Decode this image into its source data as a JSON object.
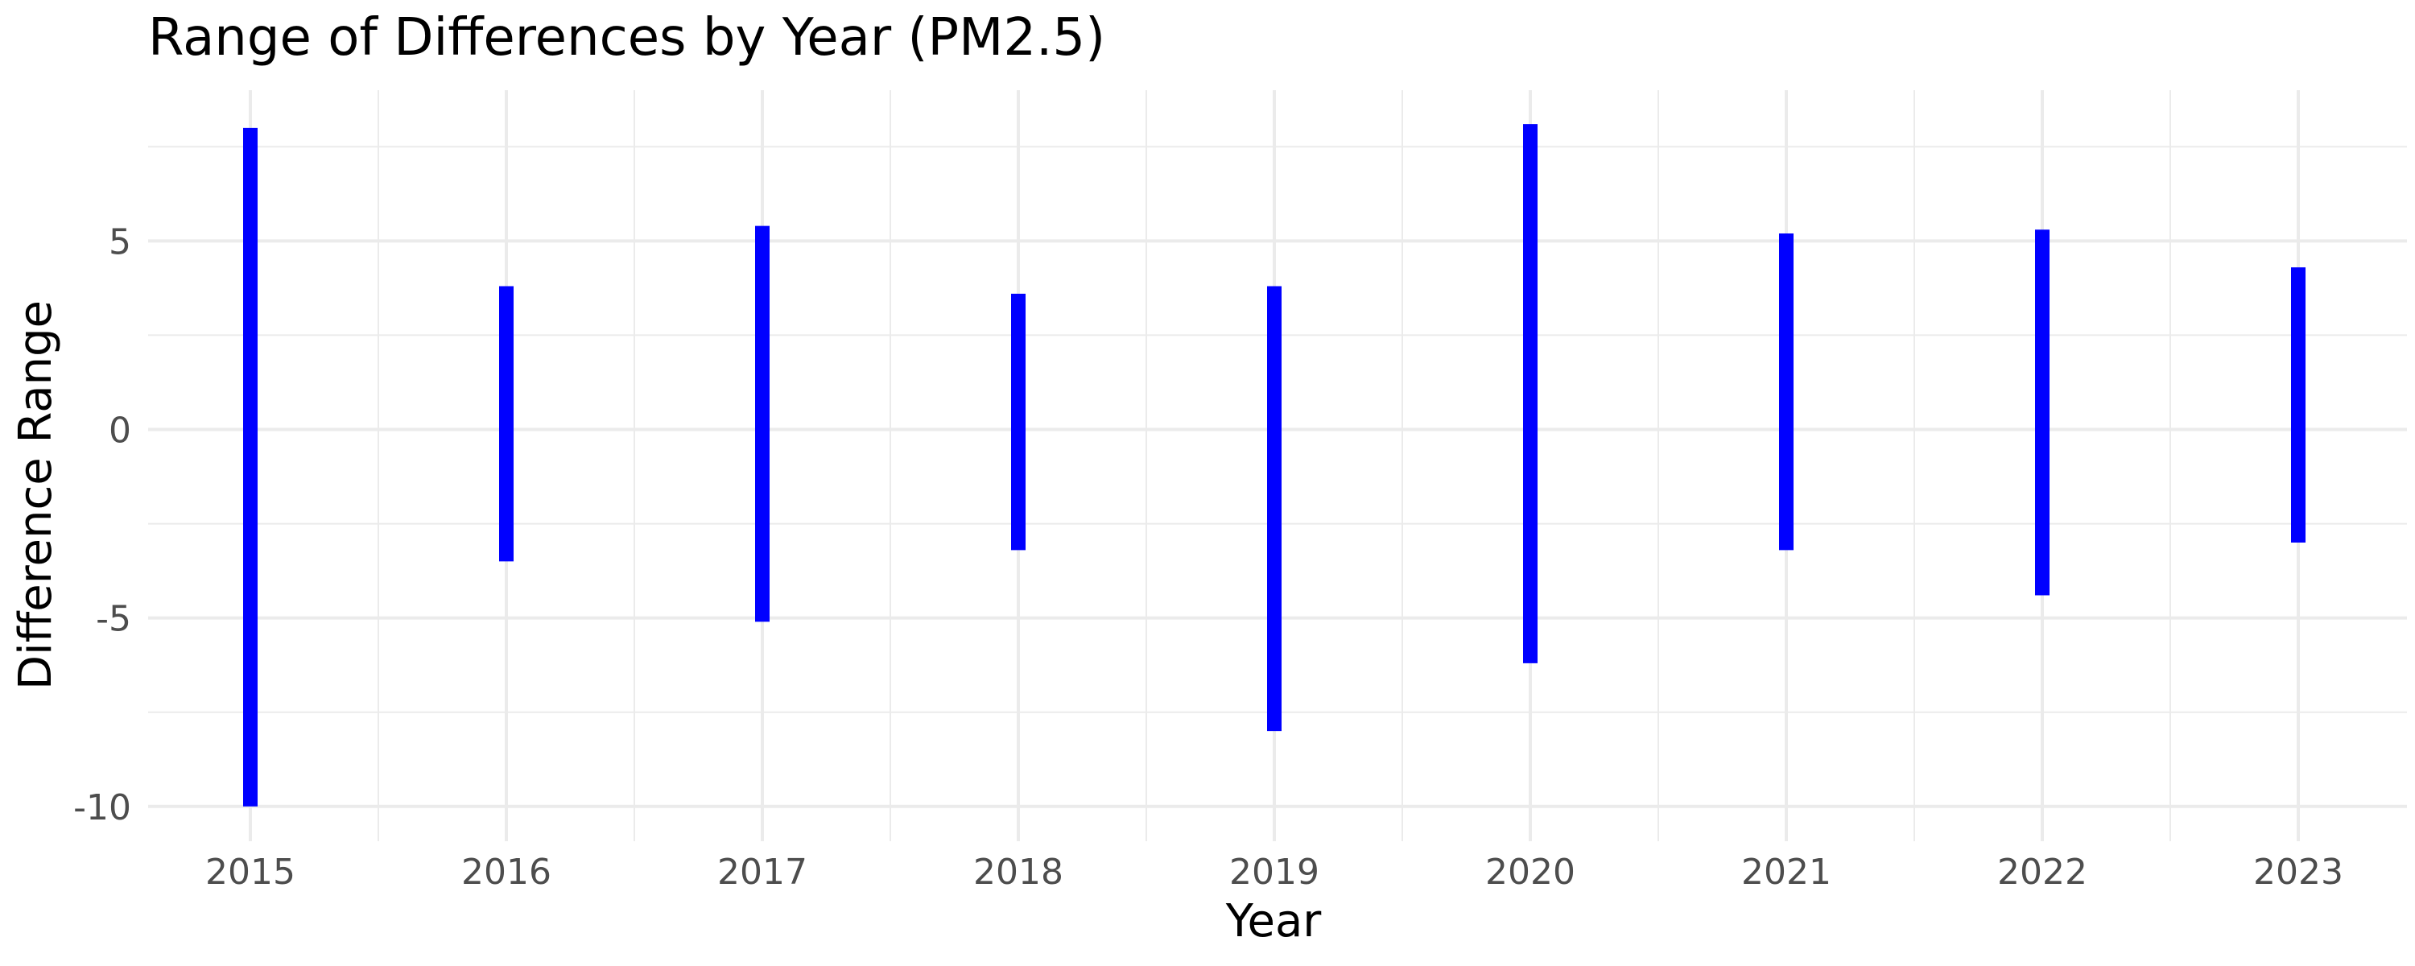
{
  "chart_data": {
    "type": "bar",
    "title": "Range of Differences by Year (PM2.5)",
    "xlabel": "Year",
    "ylabel": "Difference Range",
    "categories": [
      "2015",
      "2016",
      "2017",
      "2018",
      "2019",
      "2020",
      "2021",
      "2022",
      "2023"
    ],
    "series": [
      {
        "values_min": [
          -10.0,
          -3.5,
          -5.1,
          -3.2,
          -8.0,
          -6.2,
          -3.2,
          -4.4,
          -3.0
        ],
        "values_max": [
          8.0,
          3.8,
          5.4,
          3.6,
          3.8,
          8.1,
          5.2,
          5.3,
          4.3
        ]
      }
    ],
    "ylim": [
      -10.9,
      9.0
    ],
    "y_major_ticks": [
      -10,
      -5,
      0,
      5
    ],
    "y_tick_labels": [
      "-10",
      "-5",
      "0",
      "5"
    ],
    "y_minor_ticks": [
      -7.5,
      -2.5,
      2.5,
      7.5
    ],
    "grid": true,
    "legend": "none",
    "bar_color": "#0000ff",
    "grid_color": "#ebebeb"
  }
}
